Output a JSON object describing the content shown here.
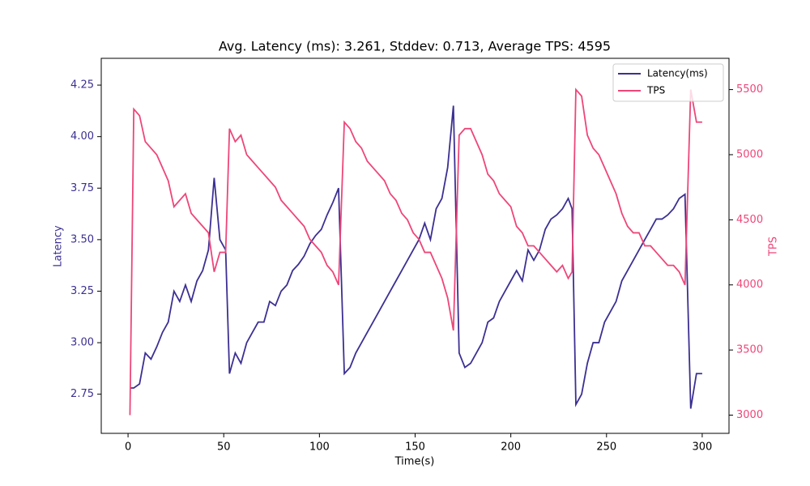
{
  "chart_data": {
    "type": "line",
    "title": "Avg. Latency (ms): 3.261, Stddev: 0.713, Average TPS: 4595",
    "xlabel": "Time(s)",
    "ylabel": "Latency",
    "y2label": "TPS",
    "x": [
      1,
      3,
      6,
      9,
      12,
      15,
      18,
      21,
      24,
      27,
      30,
      33,
      36,
      39,
      42,
      45,
      48,
      51,
      53,
      56,
      59,
      62,
      65,
      68,
      71,
      74,
      77,
      80,
      83,
      86,
      89,
      92,
      95,
      98,
      101,
      104,
      107,
      110,
      113,
      116,
      119,
      122,
      125,
      128,
      131,
      134,
      137,
      140,
      143,
      146,
      149,
      152,
      155,
      158,
      161,
      164,
      167,
      170,
      173,
      176,
      179,
      182,
      185,
      188,
      191,
      194,
      197,
      200,
      203,
      206,
      209,
      212,
      215,
      218,
      221,
      224,
      227,
      230,
      232,
      234,
      237,
      240,
      243,
      246,
      249,
      252,
      255,
      258,
      261,
      264,
      267,
      270,
      273,
      276,
      279,
      282,
      285,
      288,
      291,
      294,
      297,
      300
    ],
    "series": [
      {
        "name": "Latency(ms)",
        "color": "#3b3092",
        "axis": "y",
        "values": [
          2.78,
          2.78,
          2.8,
          2.95,
          2.92,
          2.98,
          3.05,
          3.1,
          3.25,
          3.2,
          3.28,
          3.2,
          3.3,
          3.35,
          3.45,
          3.8,
          3.5,
          3.45,
          2.85,
          2.95,
          2.9,
          3.0,
          3.05,
          3.1,
          3.1,
          3.2,
          3.18,
          3.25,
          3.28,
          3.35,
          3.38,
          3.42,
          3.48,
          3.52,
          3.55,
          3.62,
          3.68,
          3.75,
          2.85,
          2.88,
          2.95,
          3.0,
          3.05,
          3.1,
          3.15,
          3.2,
          3.25,
          3.3,
          3.35,
          3.4,
          3.45,
          3.5,
          3.58,
          3.5,
          3.65,
          3.7,
          3.85,
          4.15,
          2.95,
          2.88,
          2.9,
          2.95,
          3.0,
          3.1,
          3.12,
          3.2,
          3.25,
          3.3,
          3.35,
          3.3,
          3.45,
          3.4,
          3.45,
          3.55,
          3.6,
          3.62,
          3.65,
          3.7,
          3.65,
          2.7,
          2.75,
          2.9,
          3.0,
          3.0,
          3.1,
          3.15,
          3.2,
          3.3,
          3.35,
          3.4,
          3.45,
          3.5,
          3.55,
          3.6,
          3.6,
          3.62,
          3.65,
          3.7,
          3.72,
          2.68,
          2.85,
          2.85
        ]
      },
      {
        "name": "TPS",
        "color": "#ee4679",
        "axis": "y2",
        "values": [
          3000,
          5350,
          5300,
          5100,
          5050,
          5000,
          4900,
          4800,
          4600,
          4650,
          4700,
          4550,
          4500,
          4450,
          4400,
          4100,
          4250,
          4250,
          5200,
          5100,
          5150,
          5000,
          4950,
          4900,
          4850,
          4800,
          4750,
          4650,
          4600,
          4550,
          4500,
          4450,
          4350,
          4300,
          4250,
          4150,
          4100,
          4000,
          5250,
          5200,
          5100,
          5050,
          4950,
          4900,
          4850,
          4800,
          4700,
          4650,
          4550,
          4500,
          4400,
          4350,
          4250,
          4250,
          4150,
          4050,
          3900,
          3650,
          5150,
          5200,
          5200,
          5100,
          5000,
          4850,
          4800,
          4700,
          4650,
          4600,
          4450,
          4400,
          4300,
          4300,
          4250,
          4200,
          4150,
          4100,
          4150,
          4050,
          4100,
          5500,
          5450,
          5150,
          5050,
          5000,
          4900,
          4800,
          4700,
          4550,
          4450,
          4400,
          4400,
          4300,
          4300,
          4250,
          4200,
          4150,
          4150,
          4100,
          4000,
          5500,
          5250,
          5250
        ]
      }
    ],
    "xlim": [
      -14,
      314
    ],
    "xticks": [
      0,
      50,
      100,
      150,
      200,
      250,
      300
    ],
    "ylim": [
      2.56,
      4.38
    ],
    "yticks": [
      2.75,
      {
        "value": 3,
        "label": "3.00"
      },
      3.25,
      {
        "value": 3.5,
        "label": "3.50"
      },
      3.75,
      {
        "value": 4,
        "label": "4.00"
      },
      4.25
    ],
    "y2lim": [
      2860,
      5740
    ],
    "y2ticks": [
      3000,
      3500,
      4000,
      4500,
      5000,
      5500
    ],
    "legend": "upper right"
  }
}
